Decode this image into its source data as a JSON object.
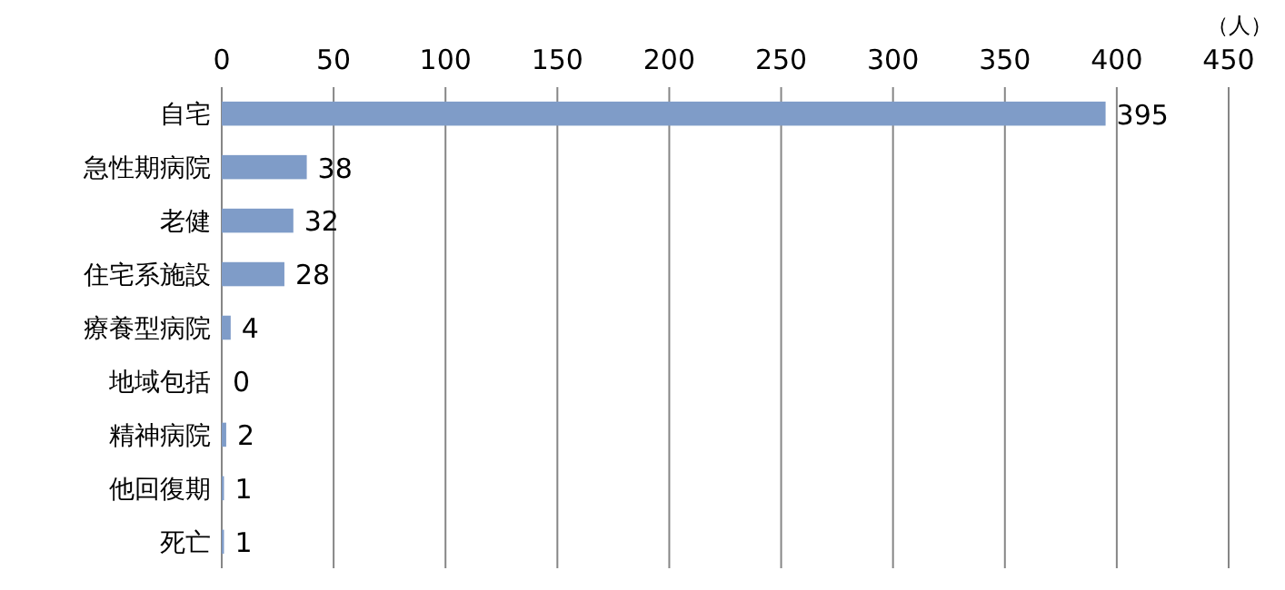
{
  "chart_data": {
    "type": "bar",
    "orientation": "horizontal",
    "xlabel": "（人）",
    "categories": [
      "自宅",
      "急性期病院",
      "老健",
      "住宅系施設",
      "療養型病院",
      "地域包括",
      "精神病院",
      "他回復期",
      "死亡"
    ],
    "values": [
      395,
      38,
      32,
      28,
      4,
      0,
      2,
      1,
      1
    ],
    "color": "#7f9cc8",
    "xlim": [
      0,
      450
    ],
    "xticks": [
      0,
      50,
      100,
      150,
      200,
      250,
      300,
      350,
      400,
      450
    ],
    "grid": "x",
    "data_labels": true
  }
}
